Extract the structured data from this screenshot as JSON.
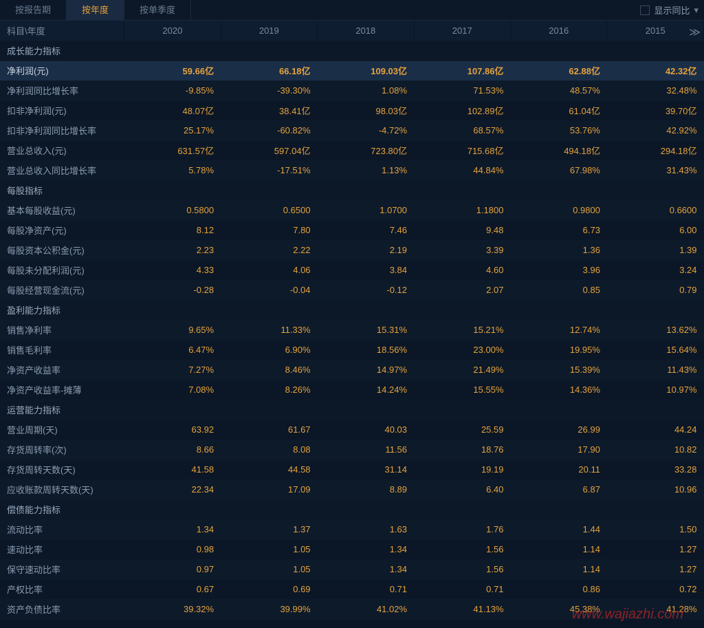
{
  "tabs": {
    "report_period": "按报告期",
    "annual": "按年度",
    "single_quarter": "按单季度"
  },
  "controls": {
    "show_yoy": "显示同比"
  },
  "header": {
    "label": "科目\\年度",
    "years": [
      "2020",
      "2019",
      "2018",
      "2017",
      "2016",
      "2015"
    ]
  },
  "sections": [
    {
      "title": "成长能力指标",
      "rows": [
        {
          "label": "净利润(元)",
          "highlight": true,
          "values": [
            "59.66亿",
            "66.18亿",
            "109.03亿",
            "107.86亿",
            "62.88亿",
            "42.32亿"
          ]
        },
        {
          "label": "净利润同比增长率",
          "values": [
            "-9.85%",
            "-39.30%",
            "1.08%",
            "71.53%",
            "48.57%",
            "32.48%"
          ]
        },
        {
          "label": "扣非净利润(元)",
          "values": [
            "48.07亿",
            "38.41亿",
            "98.03亿",
            "102.89亿",
            "61.04亿",
            "39.70亿"
          ]
        },
        {
          "label": "扣非净利润同比增长率",
          "values": [
            "25.17%",
            "-60.82%",
            "-4.72%",
            "68.57%",
            "53.76%",
            "42.92%"
          ]
        },
        {
          "label": "营业总收入(元)",
          "values": [
            "631.57亿",
            "597.04亿",
            "723.80亿",
            "715.68亿",
            "494.18亿",
            "294.18亿"
          ]
        },
        {
          "label": "营业总收入同比增长率",
          "values": [
            "5.78%",
            "-17.51%",
            "1.13%",
            "44.84%",
            "67.98%",
            "31.43%"
          ]
        }
      ]
    },
    {
      "title": "每股指标",
      "rows": [
        {
          "label": "基本每股收益(元)",
          "values": [
            "0.5800",
            "0.6500",
            "1.0700",
            "1.1800",
            "0.9800",
            "0.6600"
          ]
        },
        {
          "label": "每股净资产(元)",
          "values": [
            "8.12",
            "7.80",
            "7.46",
            "9.48",
            "6.73",
            "6.00"
          ]
        },
        {
          "label": "每股资本公积金(元)",
          "values": [
            "2.23",
            "2.22",
            "2.19",
            "3.39",
            "1.36",
            "1.39"
          ]
        },
        {
          "label": "每股未分配利润(元)",
          "values": [
            "4.33",
            "4.06",
            "3.84",
            "4.60",
            "3.96",
            "3.24"
          ]
        },
        {
          "label": "每股经营现金流(元)",
          "values": [
            "-0.28",
            "-0.04",
            "-0.12",
            "2.07",
            "0.85",
            "0.79"
          ]
        }
      ]
    },
    {
      "title": "盈利能力指标",
      "rows": [
        {
          "label": "销售净利率",
          "values": [
            "9.65%",
            "11.33%",
            "15.31%",
            "15.21%",
            "12.74%",
            "13.62%"
          ]
        },
        {
          "label": "销售毛利率",
          "values": [
            "6.47%",
            "6.90%",
            "18.56%",
            "23.00%",
            "19.95%",
            "15.64%"
          ]
        },
        {
          "label": "净资产收益率",
          "values": [
            "7.27%",
            "8.46%",
            "14.97%",
            "21.49%",
            "15.39%",
            "11.43%"
          ]
        },
        {
          "label": "净资产收益率-摊薄",
          "values": [
            "7.08%",
            "8.26%",
            "14.24%",
            "15.55%",
            "14.36%",
            "10.97%"
          ]
        }
      ]
    },
    {
      "title": "运营能力指标",
      "rows": [
        {
          "label": "营业周期(天)",
          "values": [
            "63.92",
            "61.67",
            "40.03",
            "25.59",
            "26.99",
            "44.24"
          ]
        },
        {
          "label": "存货周转率(次)",
          "values": [
            "8.66",
            "8.08",
            "11.56",
            "18.76",
            "17.90",
            "10.82"
          ]
        },
        {
          "label": "存货周转天数(天)",
          "values": [
            "41.58",
            "44.58",
            "31.14",
            "19.19",
            "20.11",
            "33.28"
          ]
        },
        {
          "label": "应收账款周转天数(天)",
          "values": [
            "22.34",
            "17.09",
            "8.89",
            "6.40",
            "6.87",
            "10.96"
          ]
        }
      ]
    },
    {
      "title": "偿债能力指标",
      "rows": [
        {
          "label": "流动比率",
          "values": [
            "1.34",
            "1.37",
            "1.63",
            "1.76",
            "1.44",
            "1.50"
          ]
        },
        {
          "label": "速动比率",
          "values": [
            "0.98",
            "1.05",
            "1.34",
            "1.56",
            "1.14",
            "1.27"
          ]
        },
        {
          "label": "保守速动比率",
          "values": [
            "0.97",
            "1.05",
            "1.34",
            "1.56",
            "1.14",
            "1.27"
          ]
        },
        {
          "label": "产权比率",
          "values": [
            "0.67",
            "0.69",
            "0.71",
            "0.71",
            "0.86",
            "0.72"
          ]
        },
        {
          "label": "资产负债比率",
          "values": [
            "39.32%",
            "39.99%",
            "41.02%",
            "41.13%",
            "45.38%",
            "41.28%"
          ]
        }
      ]
    }
  ],
  "watermark": "www.wajiazhi.com",
  "colors": {
    "background": "#0a1525",
    "text_normal": "#8a9bb0",
    "text_data": "#e6a23c",
    "text_highlight": "#c8d4e0",
    "row_highlight": "#1a2e48",
    "border": "#1a2a40"
  }
}
